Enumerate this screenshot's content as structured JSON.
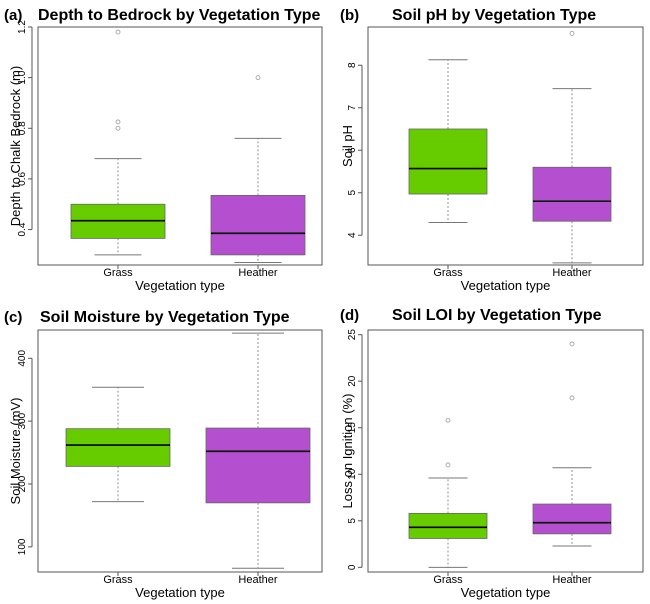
{
  "chart_data": [
    {
      "type": "box",
      "panel_label": "(a)",
      "title": "Depth to Bedrock by Vegetation Type",
      "xlabel": "Vegetation type",
      "ylabel": "Depth to Chalk Bedrock (m)",
      "ylim": [
        0.26,
        1.2
      ],
      "yticks": [
        0.4,
        0.6,
        0.8,
        1.0,
        1.2
      ],
      "ytick_labels": [
        "0.4",
        "0.6",
        "0.8",
        "1.0",
        "1.2"
      ],
      "categories": [
        "Grass",
        "Heather"
      ],
      "colors": [
        "#66cc00",
        "#b450d0"
      ],
      "boxes": [
        {
          "whisker_low": 0.3,
          "q1": 0.365,
          "median": 0.435,
          "q3": 0.5,
          "whisker_high": 0.68,
          "outliers": [
            0.8,
            0.825,
            1.18
          ]
        },
        {
          "whisker_low": 0.27,
          "q1": 0.3,
          "median": 0.385,
          "q3": 0.535,
          "whisker_high": 0.76,
          "outliers": [
            1.0
          ]
        }
      ]
    },
    {
      "type": "box",
      "panel_label": "(b)",
      "title": "Soil pH by Vegetation Type",
      "xlabel": "Vegetation type",
      "ylabel": "Soil pH",
      "ylim": [
        3.3,
        8.9
      ],
      "yticks": [
        4,
        5,
        6,
        7,
        8
      ],
      "ytick_labels": [
        "4",
        "5",
        "6",
        "7",
        "8"
      ],
      "categories": [
        "Grass",
        "Heather"
      ],
      "colors": [
        "#66cc00",
        "#b450d0"
      ],
      "boxes": [
        {
          "whisker_low": 4.3,
          "q1": 4.97,
          "median": 5.57,
          "q3": 6.5,
          "whisker_high": 8.13,
          "outliers": []
        },
        {
          "whisker_low": 3.35,
          "q1": 4.33,
          "median": 4.8,
          "q3": 5.6,
          "whisker_high": 7.45,
          "outliers": [
            8.75
          ]
        }
      ]
    },
    {
      "type": "box",
      "panel_label": "(c)",
      "title": "Soil Moisture by Vegetation Type",
      "xlabel": "Vegetation type",
      "ylabel": "Soil Moisture (mV)",
      "ylim": [
        60,
        445
      ],
      "yticks": [
        100,
        200,
        300,
        400
      ],
      "ytick_labels": [
        "100",
        "200",
        "300",
        "400"
      ],
      "categories": [
        "Grass",
        "Heather"
      ],
      "colors": [
        "#66cc00",
        "#b450d0"
      ],
      "boxes": [
        {
          "whisker_low": 172,
          "q1": 228,
          "median": 262,
          "q3": 288,
          "whisker_high": 354,
          "outliers": []
        },
        {
          "whisker_low": 66,
          "q1": 170,
          "median": 252,
          "q3": 289,
          "whisker_high": 440,
          "outliers": []
        }
      ]
    },
    {
      "type": "box",
      "panel_label": "(d)",
      "title": "Soil LOI by Vegetation Type",
      "xlabel": "Vegetation type",
      "ylabel": "Loss on Ignition (%)",
      "ylim": [
        -0.5,
        25.5
      ],
      "yticks": [
        0,
        5,
        10,
        15,
        20,
        25
      ],
      "ytick_labels": [
        "0",
        "5",
        "10",
        "15",
        "20",
        "25"
      ],
      "categories": [
        "Grass",
        "Heather"
      ],
      "colors": [
        "#66cc00",
        "#b450d0"
      ],
      "boxes": [
        {
          "whisker_low": 0.0,
          "q1": 3.1,
          "median": 4.3,
          "q3": 5.8,
          "whisker_high": 9.6,
          "outliers": [
            11.0,
            15.8
          ]
        },
        {
          "whisker_low": 2.3,
          "q1": 3.6,
          "median": 4.8,
          "q3": 6.8,
          "whisker_high": 10.7,
          "outliers": [
            18.2,
            24.0
          ]
        }
      ]
    }
  ]
}
